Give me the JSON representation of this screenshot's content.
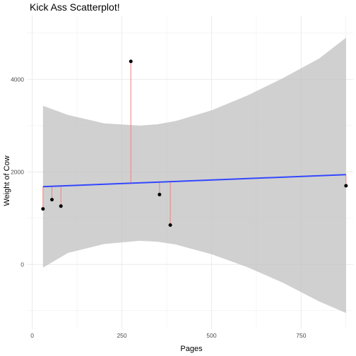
{
  "chart_data": {
    "type": "scatter",
    "title": "Kick Ass Scatterplot!",
    "xlabel": "Pages",
    "ylabel": "Weight of Cow",
    "xlim": [
      -15,
      895
    ],
    "ylim": [
      -1400,
      5380
    ],
    "xticks": [
      0,
      250,
      500,
      750
    ],
    "xtick_labels": [
      "0",
      "250",
      "500",
      "750"
    ],
    "yticks": [
      0,
      2000,
      4000
    ],
    "ytick_labels": [
      "0",
      "2000",
      "4000"
    ],
    "grid": true,
    "points": [
      {
        "x": 30,
        "y": 1200
      },
      {
        "x": 55,
        "y": 1400
      },
      {
        "x": 80,
        "y": 1260
      },
      {
        "x": 275,
        "y": 4390
      },
      {
        "x": 355,
        "y": 1510
      },
      {
        "x": 385,
        "y": 850
      },
      {
        "x": 875,
        "y": 1700
      }
    ],
    "fit_line": {
      "x0": 30,
      "y0": 1680,
      "x1": 875,
      "y1": 1940
    },
    "confidence_band": {
      "x": [
        30,
        100,
        200,
        300,
        350,
        400,
        500,
        600,
        700,
        800,
        875
      ],
      "upper": [
        3430,
        3230,
        3050,
        3000,
        3030,
        3100,
        3330,
        3650,
        4030,
        4450,
        4900
      ],
      "lower": [
        -70,
        250,
        440,
        510,
        490,
        430,
        220,
        -60,
        -400,
        -800,
        -1050
      ]
    },
    "colors": {
      "points": "#000000",
      "fit_line": "#3347ff",
      "band": "#bebebe",
      "residuals": "#f08080",
      "grid": "#ebebeb"
    }
  }
}
